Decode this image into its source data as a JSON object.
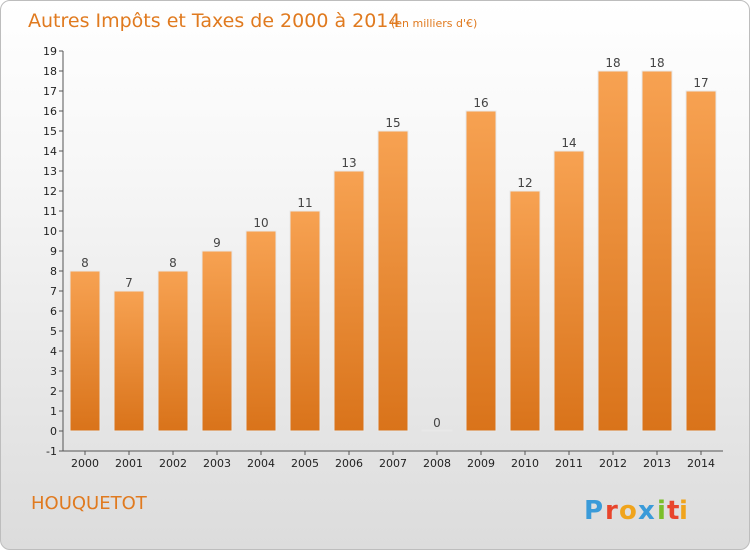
{
  "chart_data": {
    "type": "bar",
    "title": "Autres Impôts et Taxes de 2000 à 2014",
    "subtitle": "(en milliers d'€)",
    "categories": [
      "2000",
      "2001",
      "2002",
      "2003",
      "2004",
      "2005",
      "2006",
      "2007",
      "2008",
      "2009",
      "2010",
      "2011",
      "2012",
      "2013",
      "2014"
    ],
    "values": [
      8,
      7,
      8,
      9,
      10,
      11,
      13,
      15,
      0,
      16,
      12,
      14,
      18,
      18,
      17
    ],
    "value_labels": [
      "8",
      "7",
      "8",
      "9",
      "10",
      "11",
      "13",
      "15",
      "0",
      "16",
      "12",
      "14",
      "18",
      "18",
      "17"
    ],
    "y_ticks": [
      "-1",
      "0",
      "1",
      "2",
      "3",
      "4",
      "5",
      "6",
      "7",
      "8",
      "9",
      "10",
      "11",
      "12",
      "13",
      "14",
      "15",
      "16",
      "17",
      "18",
      "19"
    ],
    "y_tick_values": [
      -1,
      0,
      1,
      2,
      3,
      4,
      5,
      6,
      7,
      8,
      9,
      10,
      11,
      12,
      13,
      14,
      15,
      16,
      17,
      18,
      19
    ],
    "ylim": [
      -1,
      19
    ],
    "xlabel": "",
    "ylabel": "",
    "grid": false,
    "bar_color_top": "#f7a252",
    "bar_color_bottom": "#d9731a"
  },
  "footer": {
    "commune": "HOUQUETOT",
    "logo_letters": [
      "P",
      "r",
      "o",
      "x",
      "i",
      "t",
      "i"
    ],
    "logo_colors": [
      "#3a9bd9",
      "#e8452c",
      "#f0a41c",
      "#3a9bd9",
      "#7bbf2a",
      "#e8452c",
      "#f0a41c"
    ]
  }
}
